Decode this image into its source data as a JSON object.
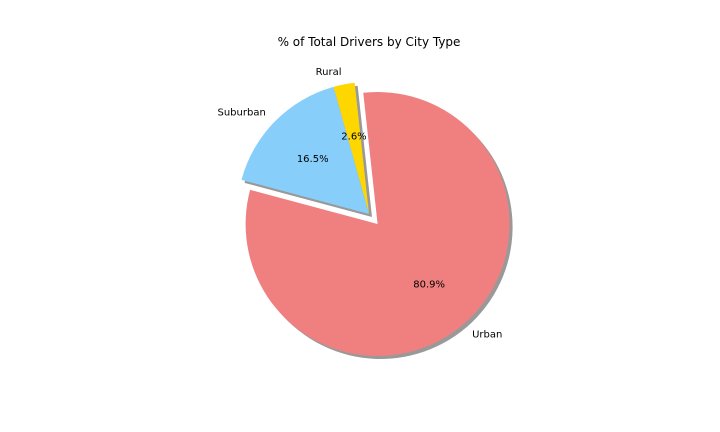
{
  "chart_data": {
    "type": "pie",
    "title": "% of Total Drivers by City Type",
    "categories": [
      "Urban",
      "Rural",
      "Suburban"
    ],
    "values": [
      80.9,
      2.6,
      16.5
    ],
    "value_labels": [
      "80.9%",
      "2.6%",
      "16.5%"
    ],
    "colors": [
      "#f08080",
      "#ffd700",
      "#87cefa"
    ],
    "explode": [
      0.1,
      0,
      0
    ],
    "start_angle_deg": 165,
    "shadow": true,
    "legend": "none"
  }
}
